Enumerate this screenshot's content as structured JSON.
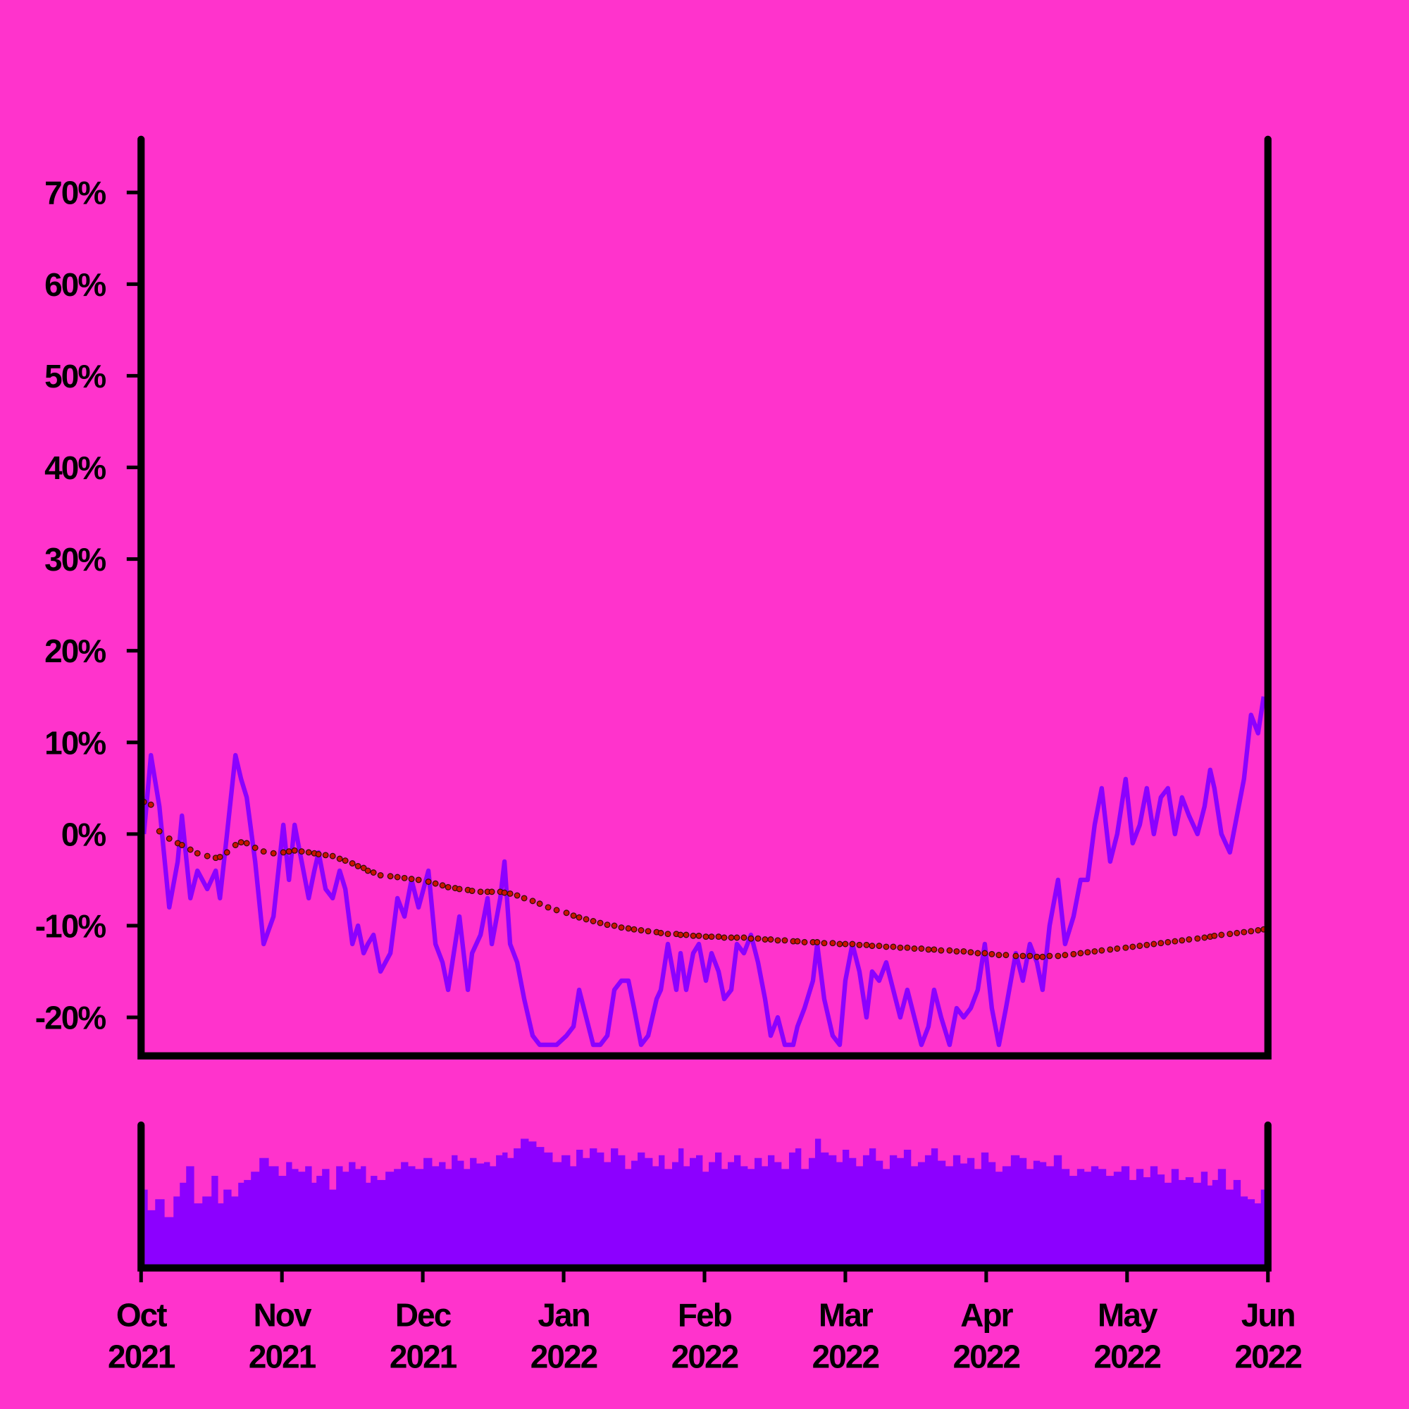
{
  "chart_data": {
    "type": "line",
    "background": "#ff33cc",
    "x": [
      0.02,
      0.07,
      0.13,
      0.2,
      0.26,
      0.29,
      0.35,
      0.4,
      0.47,
      0.53,
      0.56,
      0.61,
      0.67,
      0.71,
      0.75,
      0.81,
      0.87,
      0.94,
      1.01,
      1.05,
      1.09,
      1.14,
      1.19,
      1.23,
      1.26,
      1.31,
      1.36,
      1.41,
      1.45,
      1.5,
      1.54,
      1.58,
      1.61,
      1.65,
      1.7,
      1.77,
      1.82,
      1.87,
      1.92,
      1.97,
      2.04,
      2.09,
      2.14,
      2.18,
      2.23,
      2.26,
      2.32,
      2.35,
      2.41,
      2.46,
      2.49,
      2.55,
      2.58,
      2.62,
      2.67,
      2.72,
      2.78,
      2.83,
      2.89,
      2.95,
      3.02,
      3.07,
      3.11,
      3.16,
      3.21,
      3.26,
      3.31,
      3.36,
      3.41,
      3.46,
      3.5,
      3.55,
      3.6,
      3.66,
      3.69,
      3.74,
      3.8,
      3.83,
      3.87,
      3.92,
      3.96,
      4.01,
      4.05,
      4.1,
      4.14,
      4.19,
      4.23,
      4.28,
      4.33,
      4.38,
      4.43,
      4.47,
      4.52,
      4.57,
      4.63,
      4.66,
      4.71,
      4.77,
      4.8,
      4.85,
      4.91,
      4.96,
      5.0,
      5.05,
      5.1,
      5.15,
      5.19,
      5.24,
      5.29,
      5.34,
      5.39,
      5.44,
      5.49,
      5.54,
      5.59,
      5.63,
      5.68,
      5.74,
      5.79,
      5.84,
      5.89,
      5.94,
      5.99,
      6.04,
      6.09,
      6.14,
      6.21,
      6.26,
      6.31,
      6.36,
      6.4,
      6.45,
      6.51,
      6.56,
      6.62,
      6.67,
      6.72,
      6.77,
      6.82,
      6.88,
      6.93,
      6.99,
      7.04,
      7.09,
      7.14,
      7.19,
      7.24,
      7.29,
      7.34,
      7.39,
      7.44,
      7.5,
      7.55,
      7.59,
      7.62,
      7.67,
      7.73,
      7.78,
      7.83,
      7.88,
      7.93,
      7.97
    ],
    "series": [
      {
        "type": "line",
        "color": "#8c00ff",
        "values": [
          0,
          8.6,
          3,
          -8,
          -3,
          2,
          -7,
          -4,
          -6,
          -4,
          -7,
          0,
          8.6,
          6,
          4,
          -3,
          -12,
          -9,
          1,
          -5,
          1,
          -3,
          -7,
          -4,
          -2,
          -6,
          -7,
          -4,
          -6,
          -12,
          -10,
          -13,
          -12,
          -11,
          -15,
          -13,
          -7,
          -9,
          -5,
          -8,
          -4,
          -12,
          -14,
          -17,
          -12,
          -9,
          -17,
          -13,
          -11,
          -7,
          -12,
          -7,
          -3,
          -12,
          -14,
          -18,
          -22,
          -23,
          -23,
          -23,
          -22,
          -21,
          -17,
          -20,
          -23,
          -23,
          -22,
          -17,
          -16,
          -16,
          -19,
          -23,
          -22,
          -18,
          -17,
          -12,
          -17,
          -13,
          -17,
          -13,
          -12,
          -16,
          -13,
          -15,
          -18,
          -17,
          -12,
          -13,
          -11,
          -14,
          -18,
          -22,
          -20,
          -23,
          -23,
          -21,
          -19,
          -16,
          -12,
          -18,
          -22,
          -23,
          -16,
          -12,
          -15,
          -20,
          -15,
          -16,
          -14,
          -17,
          -20,
          -17,
          -20,
          -23,
          -21,
          -17,
          -20,
          -23,
          -19,
          -20,
          -19,
          -17,
          -12,
          -19,
          -23,
          -19,
          -13,
          -16,
          -12,
          -14,
          -17,
          -10,
          -5,
          -12,
          -9,
          -5,
          -5,
          1,
          5,
          -3,
          0,
          6,
          -1,
          1,
          5,
          0,
          4,
          5,
          0,
          4,
          2,
          0,
          3,
          7,
          5,
          0,
          -2,
          2,
          6,
          13,
          11,
          15
        ]
      },
      {
        "type": "dots",
        "color": "#cc1100",
        "values": [
          3.5,
          3.2,
          0.3,
          -0.5,
          -1.0,
          -1.2,
          -1.7,
          -2.1,
          -2.4,
          -2.6,
          -2.5,
          -2.0,
          -1.2,
          -0.9,
          -1.0,
          -1.5,
          -1.9,
          -2.1,
          -2.0,
          -1.9,
          -1.8,
          -1.9,
          -2.0,
          -2.1,
          -2.2,
          -2.3,
          -2.4,
          -2.7,
          -2.9,
          -3.2,
          -3.5,
          -3.7,
          -4.0,
          -4.2,
          -4.5,
          -4.6,
          -4.7,
          -4.8,
          -4.9,
          -5.0,
          -5.2,
          -5.4,
          -5.6,
          -5.8,
          -5.9,
          -6.0,
          -6.1,
          -6.2,
          -6.3,
          -6.3,
          -6.3,
          -6.3,
          -6.4,
          -6.5,
          -6.7,
          -7.0,
          -7.3,
          -7.6,
          -8.0,
          -8.3,
          -8.6,
          -8.9,
          -9.1,
          -9.3,
          -9.5,
          -9.7,
          -9.9,
          -10.0,
          -10.2,
          -10.3,
          -10.4,
          -10.5,
          -10.6,
          -10.7,
          -10.8,
          -10.9,
          -10.9,
          -11.0,
          -11.0,
          -11.1,
          -11.1,
          -11.2,
          -11.2,
          -11.2,
          -11.3,
          -11.3,
          -11.3,
          -11.3,
          -11.4,
          -11.4,
          -11.5,
          -11.5,
          -11.6,
          -11.6,
          -11.7,
          -11.7,
          -11.8,
          -11.8,
          -11.8,
          -11.9,
          -11.9,
          -12.0,
          -12.0,
          -12.0,
          -12.1,
          -12.1,
          -12.2,
          -12.2,
          -12.3,
          -12.3,
          -12.4,
          -12.4,
          -12.5,
          -12.5,
          -12.6,
          -12.6,
          -12.7,
          -12.7,
          -12.8,
          -12.8,
          -12.9,
          -13.0,
          -13.0,
          -13.1,
          -13.2,
          -13.2,
          -13.3,
          -13.3,
          -13.3,
          -13.4,
          -13.4,
          -13.3,
          -13.3,
          -13.2,
          -13.1,
          -13.0,
          -12.9,
          -12.8,
          -12.7,
          -12.6,
          -12.5,
          -12.4,
          -12.3,
          -12.2,
          -12.1,
          -12.0,
          -11.9,
          -11.8,
          -11.7,
          -11.6,
          -11.5,
          -11.4,
          -11.3,
          -11.2,
          -11.1,
          -11.0,
          -10.9,
          -10.8,
          -10.7,
          -10.6,
          -10.5,
          -10.4
        ]
      },
      {
        "type": "bar",
        "axis": "y2",
        "color": "#8c00ff",
        "values": [
          55,
          40,
          48,
          35,
          50,
          60,
          72,
          45,
          50,
          65,
          45,
          55,
          50,
          60,
          62,
          68,
          78,
          72,
          65,
          75,
          70,
          68,
          72,
          60,
          65,
          70,
          55,
          72,
          68,
          75,
          70,
          72,
          60,
          65,
          62,
          68,
          70,
          75,
          72,
          70,
          78,
          72,
          75,
          70,
          80,
          76,
          70,
          78,
          74,
          75,
          72,
          80,
          82,
          78,
          85,
          92,
          90,
          86,
          82,
          75,
          80,
          72,
          84,
          78,
          85,
          82,
          75,
          85,
          80,
          70,
          76,
          82,
          78,
          72,
          80,
          70,
          75,
          85,
          72,
          78,
          80,
          68,
          75,
          82,
          70,
          75,
          80,
          72,
          70,
          78,
          72,
          80,
          75,
          70,
          82,
          85,
          70,
          78,
          92,
          82,
          80,
          75,
          84,
          78,
          72,
          80,
          85,
          76,
          70,
          80,
          78,
          84,
          72,
          75,
          80,
          85,
          76,
          72,
          80,
          74,
          78,
          70,
          82,
          75,
          68,
          72,
          80,
          78,
          70,
          76,
          75,
          72,
          80,
          70,
          65,
          70,
          68,
          72,
          70,
          65,
          68,
          72,
          62,
          70,
          64,
          72,
          66,
          60,
          70,
          62,
          64,
          60,
          68,
          58,
          62,
          70,
          55,
          62,
          50,
          48,
          45,
          55
        ]
      }
    ],
    "xlim": [
      0,
      8
    ],
    "xticks": [
      {
        "value": 0,
        "label": "Oct 2021"
      },
      {
        "value": 1,
        "label": "Nov 2021"
      },
      {
        "value": 2,
        "label": "Dec 2021"
      },
      {
        "value": 3,
        "label": "Jan 2022"
      },
      {
        "value": 4,
        "label": "Feb 2022"
      },
      {
        "value": 5,
        "label": "Mar 2022"
      },
      {
        "value": 6,
        "label": "Apr 2022"
      },
      {
        "value": 7,
        "label": "May 2022"
      },
      {
        "value": 8,
        "label": "Jun 2022"
      }
    ],
    "ylim": [
      -24.2,
      75.8
    ],
    "yticks": [
      {
        "value": -20,
        "label": "-20%"
      },
      {
        "value": -10,
        "label": "-10%"
      },
      {
        "value": 0,
        "label": "0%"
      },
      {
        "value": 10,
        "label": "10%"
      },
      {
        "value": 20,
        "label": "20%"
      },
      {
        "value": 30,
        "label": "30%"
      },
      {
        "value": 40,
        "label": "40%"
      },
      {
        "value": 50,
        "label": "50%"
      },
      {
        "value": 60,
        "label": "60%"
      },
      {
        "value": 70,
        "label": "70%"
      }
    ],
    "y2lim": [
      0,
      100
    ]
  }
}
